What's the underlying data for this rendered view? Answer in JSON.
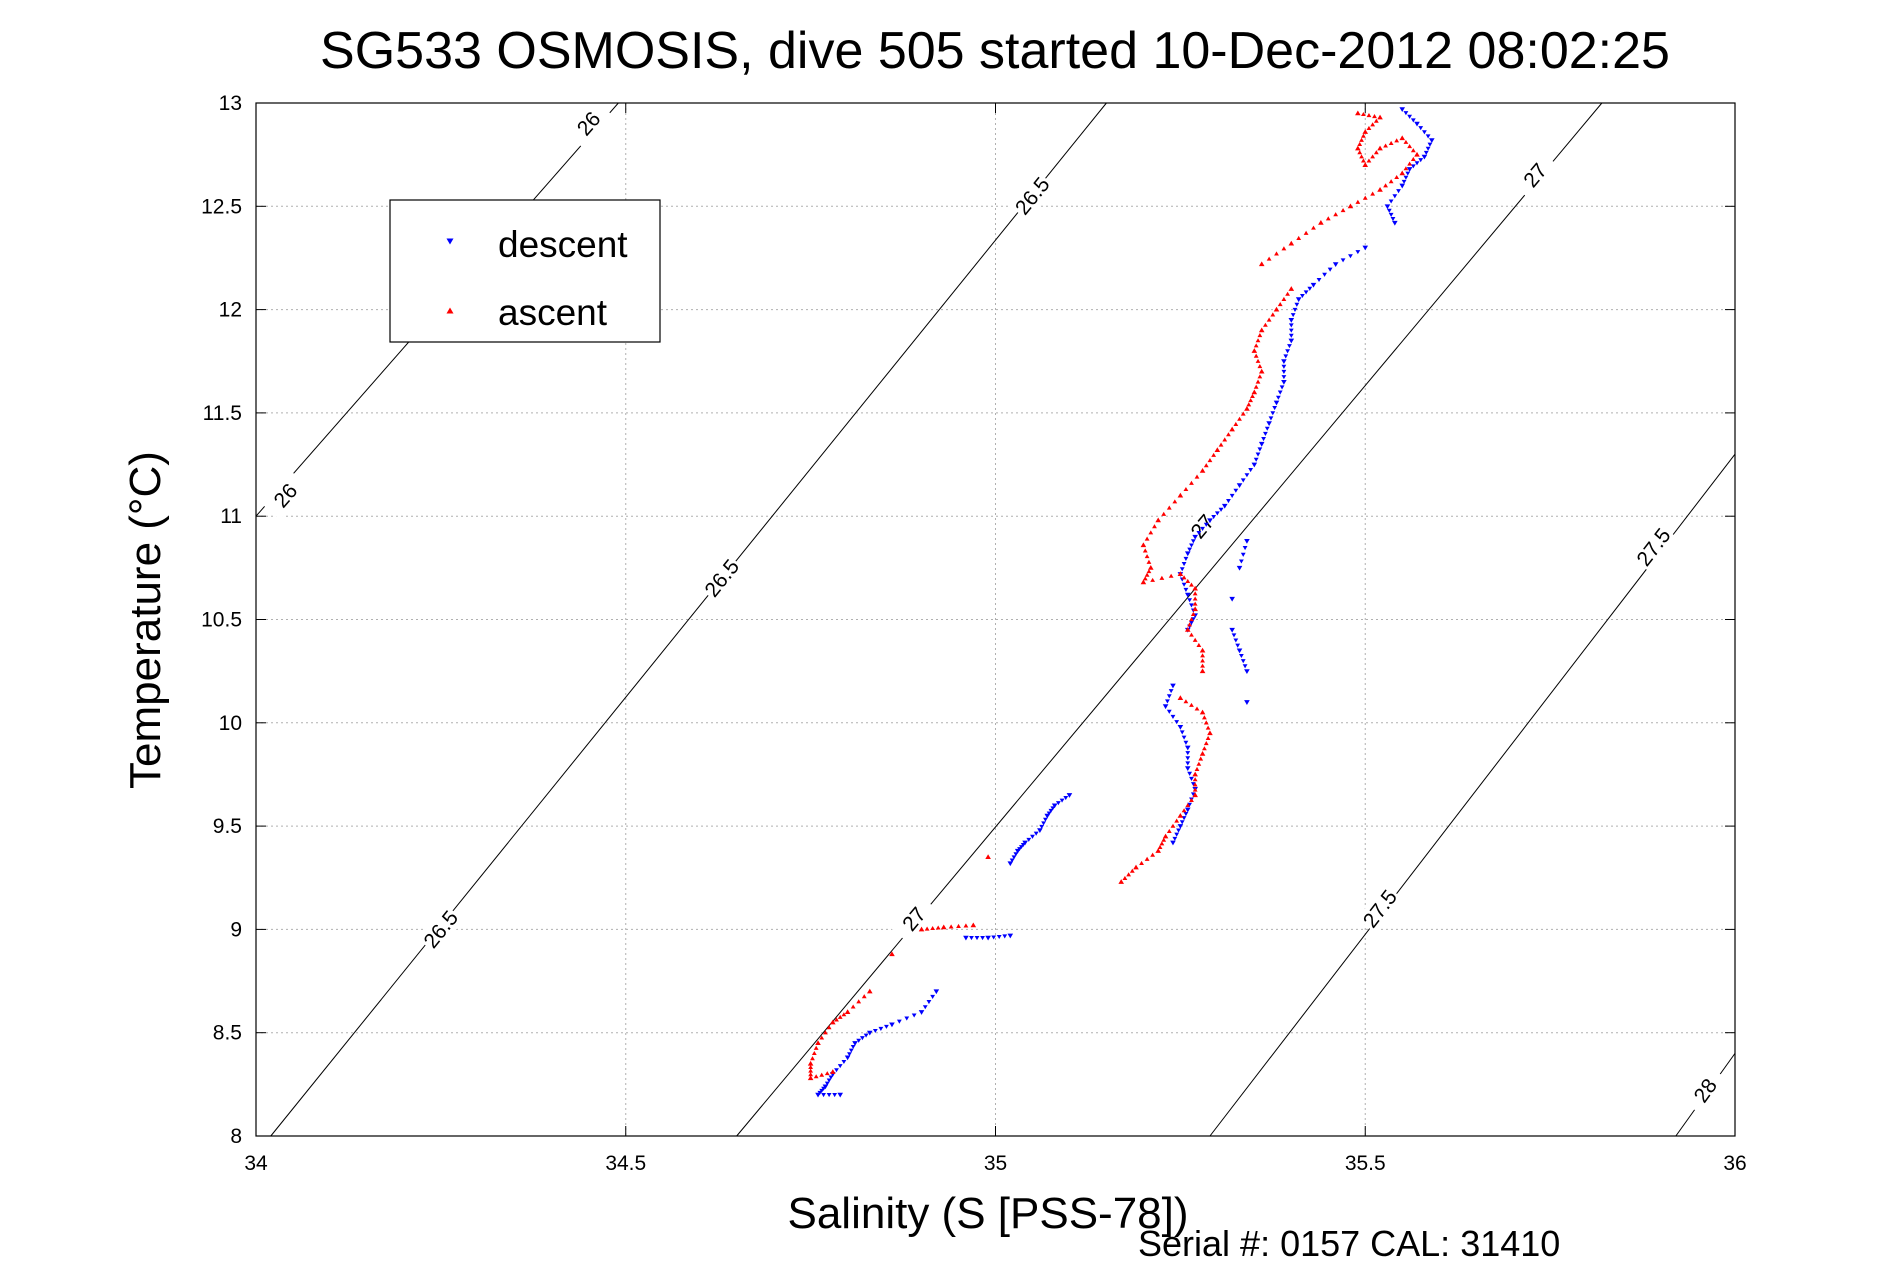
{
  "chart_data": {
    "type": "scatter",
    "title": "SG533 OSMOSIS, dive 505 started 10-Dec-2012 08:02:25",
    "xlabel": "Salinity (S [PSS-78])",
    "ylabel": "Temperature (°C)",
    "footer": "Serial #: 0157  CAL: 31410",
    "xlim": [
      34,
      36
    ],
    "ylim": [
      8,
      13
    ],
    "grid": true,
    "legend_placement": "upper-left",
    "x_ticks": [
      "34",
      "34.5",
      "35",
      "35.5",
      "36"
    ],
    "y_ticks": [
      "8",
      "8.5",
      "9",
      "9.5",
      "10",
      "10.5",
      "11",
      "11.5",
      "12",
      "12.5",
      "13"
    ],
    "density_contours": [
      {
        "level": 26,
        "line": [
          [
            34.0,
            11.0
          ],
          [
            34.49,
            13.0
          ]
        ],
        "labels": [
          {
            "text": "26",
            "x": 34.04,
            "y": 11.1
          },
          {
            "text": "26",
            "x": 34.45,
            "y": 12.9
          }
        ]
      },
      {
        "level": 26.5,
        "line": [
          [
            34.02,
            8.0
          ],
          [
            35.15,
            13.0
          ]
        ],
        "labels": [
          {
            "text": "26.5",
            "x": 34.25,
            "y": 9.0
          },
          {
            "text": "26.5",
            "x": 34.63,
            "y": 10.7
          },
          {
            "text": "26.5",
            "x": 35.05,
            "y": 12.55
          }
        ]
      },
      {
        "level": 27,
        "line": [
          [
            34.65,
            8.0
          ],
          [
            35.82,
            13.0
          ]
        ],
        "labels": [
          {
            "text": "27",
            "x": 34.89,
            "y": 9.05
          },
          {
            "text": "27",
            "x": 35.28,
            "y": 10.95
          },
          {
            "text": "27",
            "x": 35.73,
            "y": 12.65
          }
        ]
      },
      {
        "level": 27.5,
        "line": [
          [
            35.29,
            8.0
          ],
          [
            36.0,
            11.3
          ]
        ],
        "labels": [
          {
            "text": "27.5",
            "x": 35.52,
            "y": 9.1
          },
          {
            "text": "27.5",
            "x": 35.89,
            "y": 10.85
          }
        ]
      },
      {
        "level": 28,
        "line": [
          [
            35.92,
            8.0
          ],
          [
            36.0,
            8.4
          ]
        ],
        "labels": [
          {
            "text": "28",
            "x": 35.96,
            "y": 8.22
          }
        ]
      }
    ],
    "series": [
      {
        "name": "descent",
        "color": "#0000ff",
        "marker": "triangle-down",
        "points": [
          [
            35.55,
            12.97
          ],
          [
            35.57,
            12.9
          ],
          [
            35.59,
            12.82
          ],
          [
            35.58,
            12.74
          ],
          [
            35.56,
            12.68
          ],
          [
            35.55,
            12.6
          ],
          [
            35.53,
            12.5
          ],
          [
            35.54,
            12.42
          ],
          [
            35.5,
            12.3
          ],
          [
            35.46,
            12.22
          ],
          [
            35.43,
            12.12
          ],
          [
            35.41,
            12.05
          ],
          [
            35.4,
            11.95
          ],
          [
            35.4,
            11.85
          ],
          [
            35.39,
            11.75
          ],
          [
            35.39,
            11.65
          ],
          [
            35.38,
            11.55
          ],
          [
            35.37,
            11.45
          ],
          [
            35.36,
            11.35
          ],
          [
            35.35,
            11.25
          ],
          [
            35.33,
            11.15
          ],
          [
            35.31,
            11.05
          ],
          [
            35.29,
            10.98
          ],
          [
            35.27,
            10.9
          ],
          [
            35.26,
            10.82
          ],
          [
            35.25,
            10.72
          ],
          [
            35.26,
            10.62
          ],
          [
            35.27,
            10.52
          ],
          [
            35.26,
            10.45
          ],
          [
            35.34,
            10.88
          ],
          [
            35.33,
            10.75
          ],
          [
            35.32,
            10.6
          ],
          [
            35.32,
            10.45
          ],
          [
            35.33,
            10.35
          ],
          [
            35.34,
            10.25
          ],
          [
            35.34,
            10.1
          ],
          [
            35.24,
            10.18
          ],
          [
            35.23,
            10.08
          ],
          [
            35.25,
            9.98
          ],
          [
            35.26,
            9.88
          ],
          [
            35.26,
            9.78
          ],
          [
            35.27,
            9.68
          ],
          [
            35.26,
            9.58
          ],
          [
            35.25,
            9.5
          ],
          [
            35.24,
            9.42
          ],
          [
            35.1,
            9.65
          ],
          [
            35.08,
            9.6
          ],
          [
            35.07,
            9.55
          ],
          [
            35.06,
            9.48
          ],
          [
            35.04,
            9.42
          ],
          [
            35.03,
            9.38
          ],
          [
            35.02,
            9.32
          ],
          [
            34.96,
            8.96
          ],
          [
            34.99,
            8.96
          ],
          [
            35.02,
            8.97
          ],
          [
            34.92,
            8.7
          ],
          [
            34.9,
            8.6
          ],
          [
            34.86,
            8.54
          ],
          [
            34.83,
            8.5
          ],
          [
            34.81,
            8.45
          ],
          [
            34.8,
            8.38
          ],
          [
            34.78,
            8.3
          ],
          [
            34.77,
            8.24
          ],
          [
            34.76,
            8.2
          ],
          [
            34.79,
            8.2
          ]
        ]
      },
      {
        "name": "ascent",
        "color": "#ff0000",
        "marker": "triangle-up",
        "points": [
          [
            35.49,
            12.95
          ],
          [
            35.52,
            12.93
          ],
          [
            35.5,
            12.86
          ],
          [
            35.49,
            12.78
          ],
          [
            35.5,
            12.7
          ],
          [
            35.52,
            12.78
          ],
          [
            35.55,
            12.83
          ],
          [
            35.57,
            12.75
          ],
          [
            35.55,
            12.66
          ],
          [
            35.52,
            12.58
          ],
          [
            35.48,
            12.5
          ],
          [
            35.44,
            12.42
          ],
          [
            35.4,
            12.32
          ],
          [
            35.36,
            12.22
          ],
          [
            35.4,
            12.1
          ],
          [
            35.38,
            12.0
          ],
          [
            35.36,
            11.9
          ],
          [
            35.35,
            11.8
          ],
          [
            35.36,
            11.7
          ],
          [
            35.35,
            11.6
          ],
          [
            35.34,
            11.52
          ],
          [
            35.32,
            11.42
          ],
          [
            35.3,
            11.32
          ],
          [
            35.28,
            11.22
          ],
          [
            35.25,
            11.1
          ],
          [
            35.22,
            10.98
          ],
          [
            35.2,
            10.86
          ],
          [
            35.21,
            10.75
          ],
          [
            35.2,
            10.68
          ],
          [
            35.25,
            10.72
          ],
          [
            35.27,
            10.65
          ],
          [
            35.27,
            10.55
          ],
          [
            35.26,
            10.45
          ],
          [
            35.28,
            10.35
          ],
          [
            35.28,
            10.25
          ],
          [
            35.25,
            10.12
          ],
          [
            35.28,
            10.05
          ],
          [
            35.29,
            9.95
          ],
          [
            35.28,
            9.85
          ],
          [
            35.27,
            9.75
          ],
          [
            35.27,
            9.65
          ],
          [
            35.25,
            9.55
          ],
          [
            35.23,
            9.45
          ],
          [
            35.22,
            9.38
          ],
          [
            35.19,
            9.3
          ],
          [
            35.17,
            9.23
          ],
          [
            34.99,
            9.35
          ],
          [
            34.9,
            9.0
          ],
          [
            34.93,
            9.01
          ],
          [
            34.97,
            9.02
          ],
          [
            34.86,
            8.88
          ],
          [
            34.83,
            8.7
          ],
          [
            34.8,
            8.6
          ],
          [
            34.78,
            8.55
          ],
          [
            34.76,
            8.45
          ],
          [
            34.75,
            8.35
          ],
          [
            34.75,
            8.28
          ],
          [
            34.78,
            8.31
          ]
        ]
      }
    ]
  }
}
